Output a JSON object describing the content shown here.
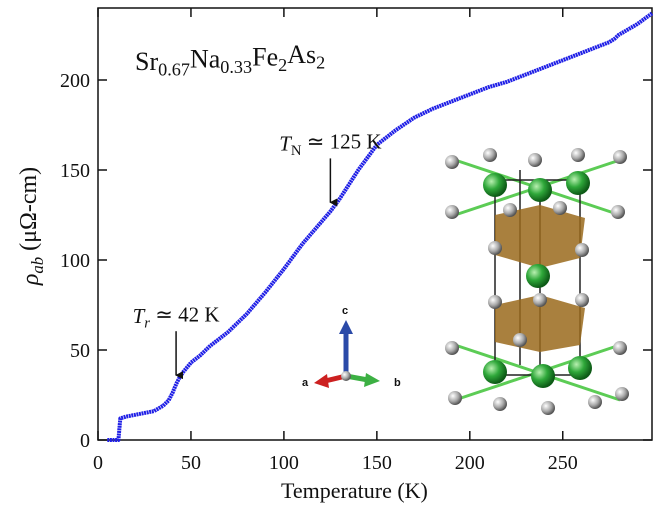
{
  "chart_data": {
    "type": "line",
    "title": [
      {
        "text": "Sr"
      },
      {
        "text": "0.67",
        "sub": true
      },
      {
        "text": "Na"
      },
      {
        "text": "0.33",
        "sub": true
      },
      {
        "text": "Fe"
      },
      {
        "text": "2",
        "sub": true
      },
      {
        "text": "As"
      },
      {
        "text": "2",
        "sub": true
      }
    ],
    "xlabel": "Temperature (K)",
    "ylabel": [
      {
        "text": "ρ",
        "italic": true
      },
      {
        "text": "ab",
        "italic": true,
        "sub": true
      },
      {
        "text": " (μΩ-cm)"
      }
    ],
    "x": [
      5,
      10,
      11,
      12,
      15,
      20,
      25,
      30,
      35,
      38,
      40,
      42,
      44,
      46,
      50,
      55,
      60,
      70,
      80,
      90,
      100,
      110,
      120,
      125,
      130,
      140,
      150,
      160,
      170,
      180,
      190,
      200,
      210,
      220,
      230,
      240,
      250,
      260,
      270,
      275,
      278,
      280,
      290,
      298
    ],
    "values": [
      0,
      0,
      0,
      12,
      13,
      14,
      15,
      16,
      19,
      22,
      26,
      31,
      35,
      38,
      43,
      47,
      52,
      60,
      70,
      82,
      95,
      109,
      121,
      127,
      134,
      150,
      164,
      172,
      179,
      184,
      188,
      192,
      196,
      199,
      203,
      207,
      211,
      215,
      219,
      221,
      223,
      225,
      231,
      237
    ],
    "color": "#1f1fe6",
    "xlim": [
      0,
      298
    ],
    "ylim": [
      0,
      240
    ],
    "xticks": [
      0,
      50,
      100,
      150,
      200,
      250
    ],
    "yticks": [
      0,
      50,
      100,
      150,
      200
    ],
    "annotations": [
      {
        "x": 125,
        "text": [
          {
            "text": "T",
            "italic": true
          },
          {
            "text": "N",
            "sub": true
          },
          {
            "text": " ≃ 125 K"
          }
        ]
      },
      {
        "x": 42,
        "text": [
          {
            "text": "T",
            "italic": true
          },
          {
            "text": "r",
            "italic": true,
            "sub": true
          },
          {
            "text": " ≃ 42 K"
          }
        ]
      }
    ],
    "inset_labels": [
      "a",
      "b",
      "c"
    ]
  }
}
